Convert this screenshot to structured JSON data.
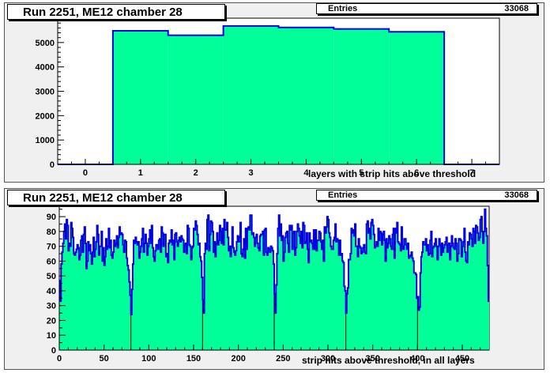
{
  "colors": {
    "fill": "#00ff99",
    "line": "#0000e0",
    "frame_bg": "#ffffff",
    "pad_bg": "#f0f0f0"
  },
  "chart_data": [
    {
      "type": "bar",
      "title": "Run 2251, ME12 chamber 28",
      "stats": {
        "label": "Entries",
        "value": "33068"
      },
      "xlabel": "layers with strip hits above threshold",
      "ylabel": "",
      "xlim": [
        -0.5,
        7.5
      ],
      "ylim": [
        0,
        6000
      ],
      "xticks": [
        0,
        1,
        2,
        3,
        4,
        5,
        6,
        7
      ],
      "yticks": [
        0,
        1000,
        2000,
        3000,
        4000,
        5000
      ],
      "categories": [
        0,
        1,
        2,
        3,
        4,
        5,
        6,
        7
      ],
      "values": [
        0,
        5480,
        5300,
        5680,
        5620,
        5560,
        5440,
        0
      ],
      "grid": false
    },
    {
      "type": "bar",
      "title": "Run 2251, ME12 chamber 28",
      "stats": {
        "label": "Entries",
        "value": "33068"
      },
      "xlabel": "strip hits above threshold, in all layers",
      "ylabel": "",
      "xlim": [
        0,
        480
      ],
      "ylim": [
        0,
        97
      ],
      "xticks": [
        0,
        50,
        100,
        150,
        200,
        250,
        300,
        350,
        400,
        450
      ],
      "yticks": [
        0,
        10,
        20,
        30,
        40,
        50,
        60,
        70,
        80,
        90
      ],
      "bin_width": 1,
      "segments": [
        {
          "x_start": 0,
          "values": [
            47,
            33,
            58,
            66,
            72,
            80,
            85,
            75,
            88,
            84,
            67,
            72,
            70,
            86,
            82,
            76,
            65,
            64,
            66,
            68,
            71,
            69,
            61,
            64,
            74,
            77,
            66,
            78,
            83,
            72,
            55,
            60,
            73,
            67,
            71,
            65,
            58,
            66,
            76,
            63,
            68,
            73,
            84,
            78,
            64,
            70,
            70,
            80,
            60,
            69,
            57,
            63,
            75,
            68,
            70,
            82,
            69,
            74,
            64,
            62,
            66,
            74,
            70,
            72,
            77,
            69,
            76,
            83,
            78,
            79,
            78,
            71,
            66,
            74,
            73,
            62,
            57,
            54,
            46,
            37
          ]
        },
        {
          "x_start": 80,
          "values": [
            24,
            41,
            58,
            74,
            72,
            76,
            73,
            71,
            73,
            62,
            66,
            70,
            75,
            82,
            66,
            72,
            78,
            72,
            64,
            70,
            75,
            81,
            72,
            84,
            69,
            63,
            60,
            67,
            71,
            71,
            68,
            74,
            75,
            66,
            83,
            79,
            70,
            78,
            78,
            63,
            65,
            59,
            72,
            74,
            73,
            81,
            71,
            74,
            61,
            78,
            79,
            73,
            70,
            74,
            76,
            73,
            77,
            75,
            74,
            66,
            71,
            72,
            65,
            84,
            82,
            71,
            70,
            61,
            69,
            70,
            82,
            81,
            87,
            84,
            78,
            71,
            72,
            63,
            60,
            49
          ]
        },
        {
          "x_start": 160,
          "values": [
            34,
            25,
            65,
            72,
            68,
            88,
            91,
            67,
            78,
            87,
            86,
            80,
            66,
            73,
            63,
            72,
            79,
            71,
            74,
            84,
            80,
            72,
            82,
            71,
            88,
            81,
            81,
            86,
            76,
            67,
            70,
            63,
            70,
            83,
            69,
            66,
            64,
            67,
            73,
            77,
            73,
            76,
            86,
            65,
            63,
            68,
            75,
            62,
            82,
            68,
            82,
            83,
            81,
            91,
            91,
            78,
            79,
            76,
            70,
            76,
            78,
            72,
            69,
            67,
            77,
            78,
            78,
            80,
            64,
            81,
            82,
            66,
            64,
            69,
            68,
            66,
            70,
            69,
            67,
            58
          ]
        },
        {
          "x_start": 240,
          "values": [
            38,
            25,
            44,
            65,
            82,
            91,
            77,
            85,
            74,
            77,
            60,
            66,
            76,
            79,
            80,
            72,
            66,
            84,
            81,
            84,
            68,
            79,
            80,
            64,
            69,
            80,
            85,
            82,
            77,
            72,
            80,
            69,
            86,
            84,
            72,
            73,
            79,
            68,
            59,
            79,
            73,
            74,
            72,
            68,
            81,
            68,
            81,
            67,
            74,
            74,
            80,
            79,
            73,
            68,
            74,
            60,
            83,
            79,
            83,
            90,
            88,
            79,
            76,
            70,
            68,
            68,
            74,
            76,
            85,
            73,
            75,
            74,
            64,
            74,
            64,
            65,
            60,
            59,
            43,
            40
          ]
        },
        {
          "x_start": 320,
          "values": [
            25,
            38,
            42,
            61,
            61,
            65,
            82,
            79,
            81,
            77,
            85,
            70,
            70,
            63,
            75,
            70,
            69,
            65,
            66,
            69,
            71,
            66,
            65,
            85,
            87,
            79,
            82,
            75,
            86,
            88,
            84,
            78,
            69,
            70,
            73,
            70,
            82,
            74,
            80,
            79,
            71,
            78,
            80,
            74,
            60,
            75,
            69,
            72,
            77,
            75,
            70,
            68,
            78,
            82,
            62,
            82,
            79,
            86,
            73,
            72,
            71,
            67,
            83,
            70,
            68,
            75,
            75,
            71,
            68,
            72,
            62,
            63,
            64,
            66,
            62,
            60,
            52,
            52,
            51,
            35
          ]
        },
        {
          "x_start": 400,
          "values": [
            36,
            27,
            29,
            52,
            63,
            66,
            73,
            71,
            71,
            75,
            67,
            71,
            64,
            65,
            74,
            80,
            63,
            69,
            70,
            72,
            75,
            70,
            61,
            70,
            75,
            71,
            64,
            72,
            66,
            69,
            71,
            73,
            76,
            66,
            71,
            72,
            61,
            70,
            77,
            72,
            69,
            68,
            75,
            72,
            60,
            65,
            75,
            75,
            74,
            63,
            70,
            73,
            82,
            66,
            60,
            59,
            73,
            71,
            79,
            78,
            75,
            70,
            82,
            80,
            72,
            84,
            83,
            79,
            74,
            76,
            88,
            90,
            80,
            72,
            80,
            95,
            82,
            77,
            57,
            33
          ]
        }
      ],
      "grid": false
    }
  ]
}
